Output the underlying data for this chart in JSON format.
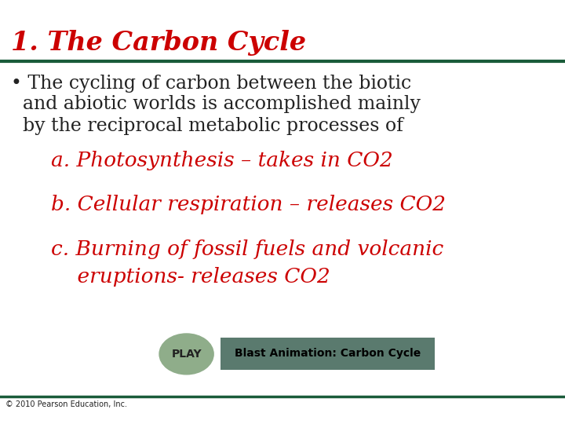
{
  "title": "1. The Carbon Cycle",
  "title_color": "#CC0000",
  "title_underline_color": "#1a5c3a",
  "background_color": "#ffffff",
  "bullet_text_color": "#333333",
  "bullet_line1": "• The cycling of carbon between the biotic",
  "bullet_line2": "  and abiotic worlds is accomplished mainly",
  "bullet_line3": "  by the reciprocal metabolic processes of",
  "item_a": "a. Photosynthesis – takes in CO2",
  "item_b": "b. Cellular respiration – releases CO2",
  "item_c1": "c. Burning of fossil fuels and volcanic",
  "item_c2": "    eruptions- releases CO2",
  "play_text": "PLAY",
  "play_circle_color": "#8fad8a",
  "blast_text": "Blast Animation: Carbon Cycle",
  "blast_box_color": "#5a7a6e",
  "footer_text": "© 2010 Pearson Education, Inc.",
  "footer_line_color": "#1a5c3a",
  "red_color": "#CC0000",
  "dark_gray": "#222222",
  "item_indent": 0.09
}
